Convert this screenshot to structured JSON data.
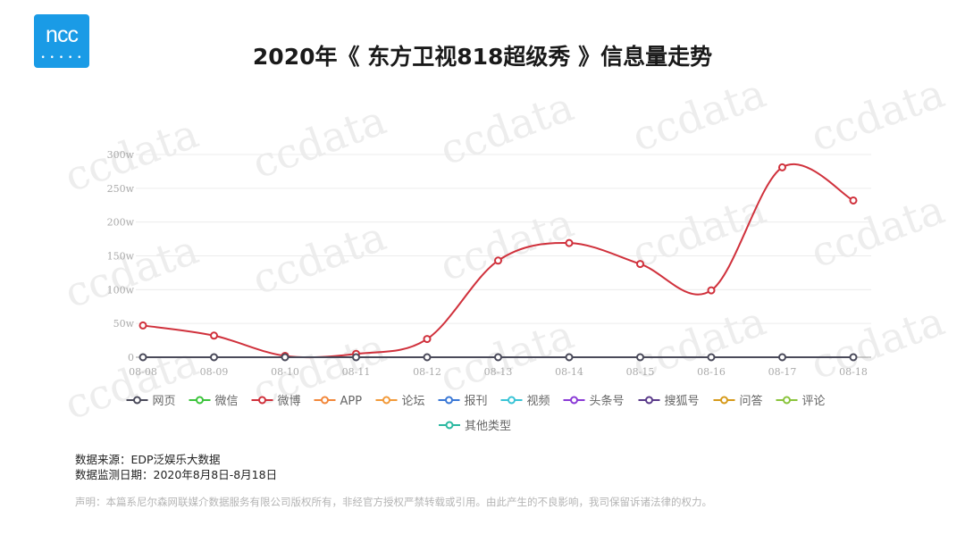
{
  "logo": {
    "text": "ncc",
    "dots": "• • • • •"
  },
  "title": "2020年《 东方卫视818超级秀 》信息量走势",
  "watermark": "ccdata",
  "chart_data": {
    "type": "line",
    "title": "2020年《 东方卫视818超级秀 》信息量走势",
    "categories": [
      "08-08",
      "08-09",
      "08-10",
      "08-11",
      "08-12",
      "08-13",
      "08-14",
      "08-15",
      "08-16",
      "08-17",
      "08-18"
    ],
    "y_ticks": [
      "0",
      "50w",
      "100w",
      "150w",
      "200w",
      "250w",
      "300w"
    ],
    "ylim": [
      0,
      300
    ],
    "grid": true,
    "legend_position": "bottom",
    "series": [
      {
        "name": "网页",
        "color": "#4a4a5a",
        "values": [
          0,
          0,
          0,
          0,
          0,
          0,
          0,
          0,
          0,
          0,
          0
        ]
      },
      {
        "name": "微信",
        "color": "#3cc43c",
        "values": [
          0,
          0,
          0,
          0,
          0,
          0,
          0,
          0,
          0,
          0,
          0
        ]
      },
      {
        "name": "微博",
        "color": "#d0313c",
        "values": [
          47,
          32,
          2,
          5,
          27,
          143,
          169,
          138,
          99,
          281,
          232
        ]
      },
      {
        "name": "APP",
        "color": "#f2873a",
        "values": [
          0,
          0,
          0,
          0,
          0,
          0,
          0,
          0,
          0,
          0,
          0
        ]
      },
      {
        "name": "论坛",
        "color": "#f29a3a",
        "values": [
          0,
          0,
          0,
          0,
          0,
          0,
          0,
          0,
          0,
          0,
          0
        ]
      },
      {
        "name": "报刊",
        "color": "#3a78d6",
        "values": [
          0,
          0,
          0,
          0,
          0,
          0,
          0,
          0,
          0,
          0,
          0
        ]
      },
      {
        "name": "视频",
        "color": "#3ac4d6",
        "values": [
          0,
          0,
          0,
          0,
          0,
          0,
          0,
          0,
          0,
          0,
          0
        ]
      },
      {
        "name": "头条号",
        "color": "#8a3ad6",
        "values": [
          0,
          0,
          0,
          0,
          0,
          0,
          0,
          0,
          0,
          0,
          0
        ]
      },
      {
        "name": "搜狐号",
        "color": "#5a3a8a",
        "values": [
          0,
          0,
          0,
          0,
          0,
          0,
          0,
          0,
          0,
          0,
          0
        ]
      },
      {
        "name": "问答",
        "color": "#d69a1a",
        "values": [
          0,
          0,
          0,
          0,
          0,
          0,
          0,
          0,
          0,
          0,
          0
        ]
      },
      {
        "name": "评论",
        "color": "#8ac43c",
        "values": [
          0,
          0,
          0,
          0,
          0,
          0,
          0,
          0,
          0,
          0,
          0
        ]
      },
      {
        "name": "其他类型",
        "color": "#2ab8a0",
        "values": [
          0,
          0,
          0,
          0,
          0,
          0,
          0,
          0,
          0,
          0,
          0
        ]
      }
    ],
    "drawn_series": [
      "网页",
      "微博"
    ],
    "front_series": "网页"
  },
  "footer": {
    "source": "数据来源：EDP泛娱乐大数据",
    "date_range": "数据监测日期：2020年8月8日-8月18日",
    "disclaimer": "声明：本篇系尼尔森网联媒介数据服务有限公司版权所有，非经官方授权严禁转载或引用。由此产生的不良影响，我司保留诉诸法律的权力。"
  }
}
